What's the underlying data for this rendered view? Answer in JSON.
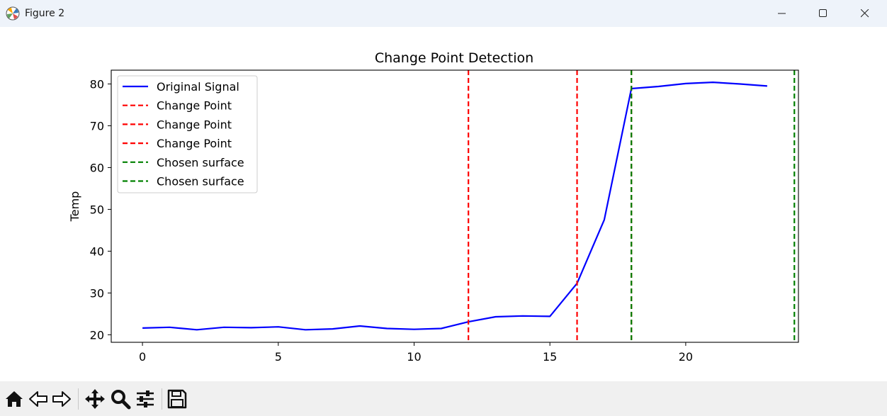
{
  "window": {
    "title": "Figure 2",
    "controls": [
      "minimize",
      "maximize",
      "close"
    ]
  },
  "toolbar": {
    "buttons": [
      {
        "name": "home",
        "icon": "home-icon"
      },
      {
        "name": "back",
        "icon": "back-arrow-icon"
      },
      {
        "name": "forward",
        "icon": "forward-arrow-icon"
      },
      {
        "name": "pan",
        "icon": "move-icon"
      },
      {
        "name": "zoom",
        "icon": "magnifier-icon"
      },
      {
        "name": "configure",
        "icon": "sliders-icon"
      },
      {
        "name": "save",
        "icon": "floppy-icon"
      }
    ]
  },
  "chart_data": {
    "type": "line",
    "title": "Change Point Detection",
    "xlabel": "",
    "ylabel": "Temp",
    "xlim": [
      -1.15,
      24.15
    ],
    "ylim": [
      18.2,
      83.3
    ],
    "xticks": [
      0,
      5,
      10,
      15,
      20
    ],
    "yticks": [
      20,
      30,
      40,
      50,
      60,
      70,
      80
    ],
    "grid": false,
    "legend_position": "upper left",
    "series": [
      {
        "name": "Original Signal",
        "color": "#0000ff",
        "x": [
          0,
          1,
          2,
          3,
          4,
          5,
          6,
          7,
          8,
          9,
          10,
          11,
          12,
          13,
          14,
          15,
          16,
          17,
          18,
          19,
          20,
          21,
          22,
          23
        ],
        "y": [
          21.6,
          21.8,
          21.2,
          21.8,
          21.7,
          21.9,
          21.2,
          21.4,
          22.1,
          21.5,
          21.3,
          21.5,
          23.1,
          24.3,
          24.5,
          24.4,
          32.3,
          47.5,
          78.9,
          79.4,
          80.1,
          80.4,
          80.0,
          79.5
        ]
      }
    ],
    "vlines": [
      {
        "name": "Change Point",
        "x": 12,
        "color": "#ff0000"
      },
      {
        "name": "Change Point",
        "x": 16,
        "color": "#ff0000"
      },
      {
        "name": "Change Point",
        "x": 18,
        "color": "#ff0000",
        "hidden_under_next": true
      },
      {
        "name": "Chosen surface",
        "x": 18,
        "color": "#008000"
      },
      {
        "name": "Chosen surface",
        "x": 24,
        "color": "#008000"
      }
    ],
    "legend": [
      {
        "label": "Original Signal",
        "style": "solid",
        "color": "#0000ff"
      },
      {
        "label": "Change Point",
        "style": "dashed",
        "color": "#ff0000"
      },
      {
        "label": "Change Point",
        "style": "dashed",
        "color": "#ff0000"
      },
      {
        "label": "Change Point",
        "style": "dashed",
        "color": "#ff0000"
      },
      {
        "label": "Chosen surface",
        "style": "dashed",
        "color": "#008000"
      },
      {
        "label": "Chosen surface",
        "style": "dashed",
        "color": "#008000"
      }
    ]
  }
}
